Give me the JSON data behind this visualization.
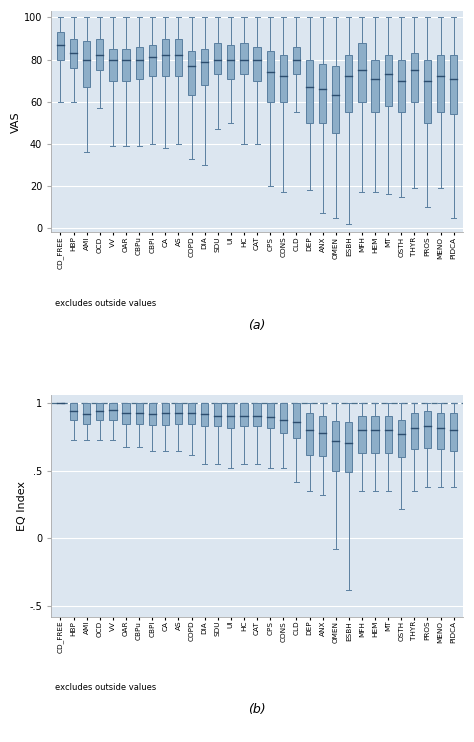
{
  "categories": [
    "CD_FREE",
    "HBP",
    "AMI",
    "OCD",
    "VV",
    "OAR",
    "CBPu",
    "CBPI",
    "CA",
    "AS",
    "COPD",
    "DIA",
    "SDU",
    "UI",
    "HC",
    "CAT",
    "CPS",
    "CONS",
    "CLD",
    "DEP",
    "ANX",
    "OMEN",
    "ESBH",
    "MFH",
    "HEM",
    "MT",
    "OSTH",
    "THYR",
    "PROS",
    "MENO",
    "PIDCA"
  ],
  "vas_boxes": [
    {
      "whislo": 60,
      "q1": 80,
      "med": 87,
      "q3": 93,
      "whishi": 100
    },
    {
      "whislo": 60,
      "q1": 76,
      "med": 83,
      "q3": 90,
      "whishi": 100
    },
    {
      "whislo": 36,
      "q1": 67,
      "med": 80,
      "q3": 89,
      "whishi": 100
    },
    {
      "whislo": 57,
      "q1": 75,
      "med": 82,
      "q3": 90,
      "whishi": 100
    },
    {
      "whislo": 39,
      "q1": 70,
      "med": 80,
      "q3": 85,
      "whishi": 100
    },
    {
      "whislo": 39,
      "q1": 70,
      "med": 80,
      "q3": 85,
      "whishi": 100
    },
    {
      "whislo": 39,
      "q1": 71,
      "med": 80,
      "q3": 86,
      "whishi": 100
    },
    {
      "whislo": 40,
      "q1": 72,
      "med": 81,
      "q3": 87,
      "whishi": 100
    },
    {
      "whislo": 38,
      "q1": 72,
      "med": 82,
      "q3": 90,
      "whishi": 100
    },
    {
      "whislo": 40,
      "q1": 72,
      "med": 82,
      "q3": 90,
      "whishi": 100
    },
    {
      "whislo": 33,
      "q1": 63,
      "med": 77,
      "q3": 84,
      "whishi": 100
    },
    {
      "whislo": 30,
      "q1": 68,
      "med": 79,
      "q3": 85,
      "whishi": 100
    },
    {
      "whislo": 47,
      "q1": 73,
      "med": 80,
      "q3": 88,
      "whishi": 100
    },
    {
      "whislo": 50,
      "q1": 71,
      "med": 80,
      "q3": 87,
      "whishi": 100
    },
    {
      "whislo": 40,
      "q1": 73,
      "med": 80,
      "q3": 88,
      "whishi": 100
    },
    {
      "whislo": 40,
      "q1": 70,
      "med": 80,
      "q3": 86,
      "whishi": 100
    },
    {
      "whislo": 20,
      "q1": 60,
      "med": 74,
      "q3": 84,
      "whishi": 100
    },
    {
      "whislo": 17,
      "q1": 60,
      "med": 72,
      "q3": 82,
      "whishi": 100
    },
    {
      "whislo": 55,
      "q1": 73,
      "med": 80,
      "q3": 86,
      "whishi": 100
    },
    {
      "whislo": 18,
      "q1": 50,
      "med": 67,
      "q3": 80,
      "whishi": 100
    },
    {
      "whislo": 7,
      "q1": 50,
      "med": 66,
      "q3": 78,
      "whishi": 100
    },
    {
      "whislo": 5,
      "q1": 45,
      "med": 63,
      "q3": 77,
      "whishi": 100
    },
    {
      "whislo": 2,
      "q1": 55,
      "med": 72,
      "q3": 82,
      "whishi": 100
    },
    {
      "whislo": 17,
      "q1": 60,
      "med": 75,
      "q3": 88,
      "whishi": 100
    },
    {
      "whislo": 17,
      "q1": 55,
      "med": 71,
      "q3": 80,
      "whishi": 100
    },
    {
      "whislo": 16,
      "q1": 58,
      "med": 73,
      "q3": 82,
      "whishi": 100
    },
    {
      "whislo": 15,
      "q1": 55,
      "med": 70,
      "q3": 80,
      "whishi": 100
    },
    {
      "whislo": 19,
      "q1": 60,
      "med": 75,
      "q3": 83,
      "whishi": 100
    },
    {
      "whislo": 10,
      "q1": 50,
      "med": 70,
      "q3": 80,
      "whishi": 100
    },
    {
      "whislo": 19,
      "q1": 55,
      "med": 72,
      "q3": 82,
      "whishi": 100
    },
    {
      "whislo": 5,
      "q1": 54,
      "med": 71,
      "q3": 82,
      "whishi": 100
    }
  ],
  "eq_boxes": [
    {
      "whislo": 1.0,
      "q1": 1.0,
      "med": 1.0,
      "q3": 1.0,
      "whishi": 1.0
    },
    {
      "whislo": 0.73,
      "q1": 0.88,
      "med": 0.94,
      "q3": 1.0,
      "whishi": 1.0
    },
    {
      "whislo": 0.73,
      "q1": 0.85,
      "med": 0.92,
      "q3": 1.0,
      "whishi": 1.0
    },
    {
      "whislo": 0.73,
      "q1": 0.88,
      "med": 0.94,
      "q3": 1.0,
      "whishi": 1.0
    },
    {
      "whislo": 0.73,
      "q1": 0.88,
      "med": 0.95,
      "q3": 1.0,
      "whishi": 1.0
    },
    {
      "whislo": 0.68,
      "q1": 0.85,
      "med": 0.93,
      "q3": 1.0,
      "whishi": 1.0
    },
    {
      "whislo": 0.68,
      "q1": 0.85,
      "med": 0.93,
      "q3": 1.0,
      "whishi": 1.0
    },
    {
      "whislo": 0.65,
      "q1": 0.84,
      "med": 0.92,
      "q3": 1.0,
      "whishi": 1.0
    },
    {
      "whislo": 0.65,
      "q1": 0.84,
      "med": 0.93,
      "q3": 1.0,
      "whishi": 1.0
    },
    {
      "whislo": 0.65,
      "q1": 0.85,
      "med": 0.93,
      "q3": 1.0,
      "whishi": 1.0
    },
    {
      "whislo": 0.62,
      "q1": 0.85,
      "med": 0.93,
      "q3": 1.0,
      "whishi": 1.0
    },
    {
      "whislo": 0.55,
      "q1": 0.83,
      "med": 0.92,
      "q3": 1.0,
      "whishi": 1.0
    },
    {
      "whislo": 0.55,
      "q1": 0.83,
      "med": 0.91,
      "q3": 1.0,
      "whishi": 1.0
    },
    {
      "whislo": 0.52,
      "q1": 0.82,
      "med": 0.91,
      "q3": 1.0,
      "whishi": 1.0
    },
    {
      "whislo": 0.55,
      "q1": 0.83,
      "med": 0.91,
      "q3": 1.0,
      "whishi": 1.0
    },
    {
      "whislo": 0.55,
      "q1": 0.83,
      "med": 0.91,
      "q3": 1.0,
      "whishi": 1.0
    },
    {
      "whislo": 0.52,
      "q1": 0.82,
      "med": 0.9,
      "q3": 1.0,
      "whishi": 1.0
    },
    {
      "whislo": 0.52,
      "q1": 0.78,
      "med": 0.88,
      "q3": 1.0,
      "whishi": 1.0
    },
    {
      "whislo": 0.42,
      "q1": 0.74,
      "med": 0.86,
      "q3": 1.0,
      "whishi": 1.0
    },
    {
      "whislo": 0.35,
      "q1": 0.62,
      "med": 0.8,
      "q3": 0.93,
      "whishi": 1.0
    },
    {
      "whislo": 0.32,
      "q1": 0.61,
      "med": 0.78,
      "q3": 0.91,
      "whishi": 1.0
    },
    {
      "whislo": -0.08,
      "q1": 0.5,
      "med": 0.72,
      "q3": 0.87,
      "whishi": 1.0
    },
    {
      "whislo": -0.38,
      "q1": 0.49,
      "med": 0.71,
      "q3": 0.86,
      "whishi": 1.0
    },
    {
      "whislo": 0.35,
      "q1": 0.63,
      "med": 0.8,
      "q3": 0.91,
      "whishi": 1.0
    },
    {
      "whislo": 0.35,
      "q1": 0.63,
      "med": 0.8,
      "q3": 0.91,
      "whishi": 1.0
    },
    {
      "whislo": 0.35,
      "q1": 0.63,
      "med": 0.8,
      "q3": 0.91,
      "whishi": 1.0
    },
    {
      "whislo": 0.22,
      "q1": 0.6,
      "med": 0.77,
      "q3": 0.88,
      "whishi": 1.0
    },
    {
      "whislo": 0.35,
      "q1": 0.66,
      "med": 0.82,
      "q3": 0.93,
      "whishi": 1.0
    },
    {
      "whislo": 0.38,
      "q1": 0.67,
      "med": 0.83,
      "q3": 0.94,
      "whishi": 1.0
    },
    {
      "whislo": 0.38,
      "q1": 0.66,
      "med": 0.82,
      "q3": 0.93,
      "whishi": 1.0
    },
    {
      "whislo": 0.38,
      "q1": 0.65,
      "med": 0.8,
      "q3": 0.93,
      "whishi": 1.0
    }
  ],
  "box_facecolor": "#8daec8",
  "box_edgecolor": "#5a7fa0",
  "median_color": "#2c4d6e",
  "whisker_color": "#5a7fa0",
  "cap_color": "#5a7fa0",
  "bg_color": "#dce6f0",
  "grid_color": "#ffffff",
  "vas_ylabel": "VAS",
  "eq_ylabel": "EQ Index",
  "vas_ylim": [
    -2,
    103
  ],
  "eq_ylim": [
    -0.58,
    1.06
  ],
  "vas_yticks": [
    0,
    20,
    40,
    60,
    80,
    100
  ],
  "eq_yticks": [
    -0.5,
    0,
    0.5,
    1.0
  ],
  "eq_yticklabels": [
    "-.5",
    "0",
    ".5",
    "1"
  ],
  "footnote": "excludes outside values",
  "label_a": "(a)",
  "label_b": "(b)"
}
